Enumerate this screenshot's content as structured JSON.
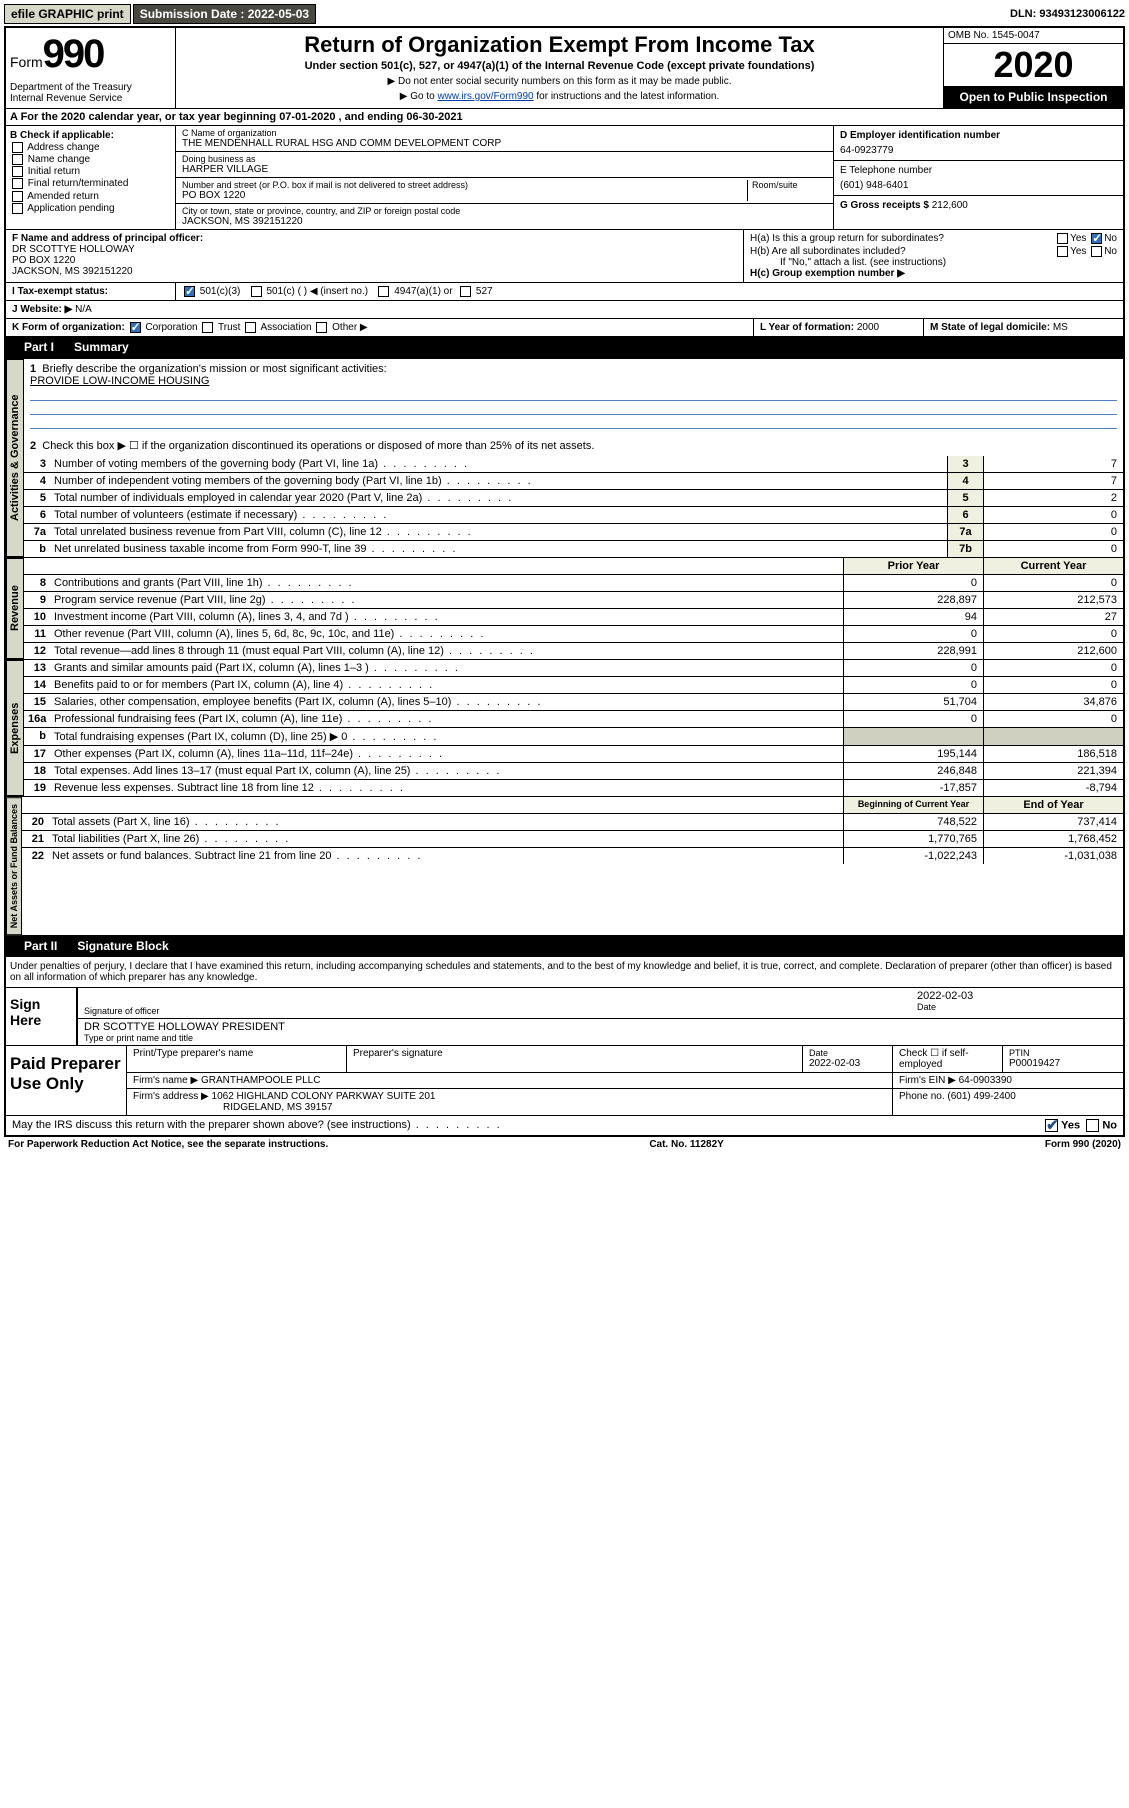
{
  "topbar": {
    "efile": "efile GRAPHIC print",
    "sub_label": "Submission Date :",
    "sub_date": "2022-05-03",
    "dln_label": "DLN:",
    "dln": "93493123006122"
  },
  "header": {
    "form": "Form",
    "form_num": "990",
    "dept1": "Department of the Treasury",
    "dept2": "Internal Revenue Service",
    "title": "Return of Organization Exempt From Income Tax",
    "sub": "Under section 501(c), 527, or 4947(a)(1) of the Internal Revenue Code (except private foundations)",
    "note1": "▶ Do not enter social security numbers on this form as it may be made public.",
    "note2_pre": "▶ Go to ",
    "note2_link": "www.irs.gov/Form990",
    "note2_post": " for instructions and the latest information.",
    "omb": "OMB No. 1545-0047",
    "year": "2020",
    "inspect": "Open to Public Inspection"
  },
  "line_a": "A For the 2020 calendar year, or tax year beginning 07-01-2020    , and ending 06-30-2021",
  "box_b": {
    "title": "B Check if applicable:",
    "items": [
      "Address change",
      "Name change",
      "Initial return",
      "Final return/terminated",
      "Amended return",
      "Application pending"
    ]
  },
  "box_c": {
    "label_name": "C Name of organization",
    "name": "THE MENDENHALL RURAL HSG AND COMM DEVELOPMENT CORP",
    "dba_label": "Doing business as",
    "dba": "HARPER VILLAGE",
    "addr_label": "Number and street (or P.O. box if mail is not delivered to street address)",
    "room_label": "Room/suite",
    "addr": "PO BOX 1220",
    "city_label": "City or town, state or province, country, and ZIP or foreign postal code",
    "city": "JACKSON, MS  392151220"
  },
  "box_d": {
    "label": "D Employer identification number",
    "value": "64-0923779"
  },
  "box_e": {
    "label": "E Telephone number",
    "value": "(601) 948-6401"
  },
  "box_g": {
    "label": "G Gross receipts $",
    "value": "212,600"
  },
  "box_f": {
    "label": "F Name and address of principal officer:",
    "l1": "DR SCOTTYE HOLLOWAY",
    "l2": "PO BOX 1220",
    "l3": "JACKSON, MS  392151220"
  },
  "box_h": {
    "ha": "H(a)  Is this a group return for subordinates?",
    "hb": "H(b)  Are all subordinates included?",
    "hb_note": "If \"No,\" attach a list. (see instructions)",
    "hc": "H(c)  Group exemption number ▶",
    "yes": "Yes",
    "no": "No"
  },
  "line_i": {
    "label": "Tax-exempt status:",
    "o1": "501(c)(3)",
    "o2": "501(c) (   ) ◀ (insert no.)",
    "o3": "4947(a)(1) or",
    "o4": "527"
  },
  "line_j": {
    "label": "J   Website: ▶",
    "value": "N/A"
  },
  "line_k": {
    "label": "K Form of organization:",
    "o1": "Corporation",
    "o2": "Trust",
    "o3": "Association",
    "o4": "Other ▶"
  },
  "line_l": {
    "label": "L Year of formation:",
    "value": "2000"
  },
  "line_m": {
    "label": "M State of legal domicile:",
    "value": "MS"
  },
  "part1": {
    "num": "Part I",
    "title": "Summary"
  },
  "s1": {
    "tab": "Activities & Governance",
    "q1": "Briefly describe the organization's mission or most significant activities:",
    "q1v": "PROVIDE LOW-INCOME HOUSING",
    "q2": "Check this box ▶ ☐  if the organization discontinued its operations or disposed of more than 25% of its net assets.",
    "rows": [
      {
        "n": "3",
        "t": "Number of voting members of the governing body (Part VI, line 1a)",
        "b": "3",
        "v": "7"
      },
      {
        "n": "4",
        "t": "Number of independent voting members of the governing body (Part VI, line 1b)",
        "b": "4",
        "v": "7"
      },
      {
        "n": "5",
        "t": "Total number of individuals employed in calendar year 2020 (Part V, line 2a)",
        "b": "5",
        "v": "2"
      },
      {
        "n": "6",
        "t": "Total number of volunteers (estimate if necessary)",
        "b": "6",
        "v": "0"
      },
      {
        "n": "7a",
        "t": "Total unrelated business revenue from Part VIII, column (C), line 12",
        "b": "7a",
        "v": "0"
      },
      {
        "n": "b",
        "t": "Net unrelated business taxable income from Form 990-T, line 39",
        "b": "7b",
        "v": "0"
      }
    ]
  },
  "s2": {
    "tab": "Revenue",
    "hdr_prior": "Prior Year",
    "hdr_curr": "Current Year",
    "rows": [
      {
        "n": "8",
        "t": "Contributions and grants (Part VIII, line 1h)",
        "p": "0",
        "c": "0"
      },
      {
        "n": "9",
        "t": "Program service revenue (Part VIII, line 2g)",
        "p": "228,897",
        "c": "212,573"
      },
      {
        "n": "10",
        "t": "Investment income (Part VIII, column (A), lines 3, 4, and 7d )",
        "p": "94",
        "c": "27"
      },
      {
        "n": "11",
        "t": "Other revenue (Part VIII, column (A), lines 5, 6d, 8c, 9c, 10c, and 11e)",
        "p": "0",
        "c": "0"
      },
      {
        "n": "12",
        "t": "Total revenue—add lines 8 through 11 (must equal Part VIII, column (A), line 12)",
        "p": "228,991",
        "c": "212,600"
      }
    ]
  },
  "s3": {
    "tab": "Expenses",
    "rows": [
      {
        "n": "13",
        "t": "Grants and similar amounts paid (Part IX, column (A), lines 1–3 )",
        "p": "0",
        "c": "0"
      },
      {
        "n": "14",
        "t": "Benefits paid to or for members (Part IX, column (A), line 4)",
        "p": "0",
        "c": "0"
      },
      {
        "n": "15",
        "t": "Salaries, other compensation, employee benefits (Part IX, column (A), lines 5–10)",
        "p": "51,704",
        "c": "34,876"
      },
      {
        "n": "16a",
        "t": "Professional fundraising fees (Part IX, column (A), line 11e)",
        "p": "0",
        "c": "0"
      },
      {
        "n": "b",
        "t": "Total fundraising expenses (Part IX, column (D), line 25) ▶ 0",
        "p": "",
        "c": ""
      },
      {
        "n": "17",
        "t": "Other expenses (Part IX, column (A), lines 11a–11d, 11f–24e)",
        "p": "195,144",
        "c": "186,518"
      },
      {
        "n": "18",
        "t": "Total expenses. Add lines 13–17 (must equal Part IX, column (A), line 25)",
        "p": "246,848",
        "c": "221,394"
      },
      {
        "n": "19",
        "t": "Revenue less expenses. Subtract line 18 from line 12",
        "p": "-17,857",
        "c": "-8,794"
      }
    ]
  },
  "s4": {
    "tab": "Net Assets or Fund Balances",
    "hdr_prior": "Beginning of Current Year",
    "hdr_curr": "End of Year",
    "rows": [
      {
        "n": "20",
        "t": "Total assets (Part X, line 16)",
        "p": "748,522",
        "c": "737,414"
      },
      {
        "n": "21",
        "t": "Total liabilities (Part X, line 26)",
        "p": "1,770,765",
        "c": "1,768,452"
      },
      {
        "n": "22",
        "t": "Net assets or fund balances. Subtract line 21 from line 20",
        "p": "-1,022,243",
        "c": "-1,031,038"
      }
    ]
  },
  "part2": {
    "num": "Part II",
    "title": "Signature Block"
  },
  "penalty": "Under penalties of perjury, I declare that I have examined this return, including accompanying schedules and statements, and to the best of my knowledge and belief, it is true, correct, and complete. Declaration of preparer (other than officer) is based on all information of which preparer has any knowledge.",
  "sign": {
    "label": "Sign Here",
    "sig_of": "Signature of officer",
    "date_l": "Date",
    "date_v": "2022-02-03",
    "name": "DR SCOTTYE HOLLOWAY PRESIDENT",
    "name_l": "Type or print name and title"
  },
  "prep": {
    "label": "Paid Preparer Use Only",
    "r1c1": "Print/Type preparer's name",
    "r1c2": "Preparer's signature",
    "r1c3l": "Date",
    "r1c3v": "2022-02-03",
    "r1c4": "Check ☐ if self-employed",
    "r1c5l": "PTIN",
    "r1c5v": "P00019427",
    "r2l": "Firm's name    ▶",
    "r2v": "GRANTHAMPOOLE PLLC",
    "r2einl": "Firm's EIN ▶",
    "r2einv": "64-0903390",
    "r3l": "Firm's address ▶",
    "r3v": "1062 HIGHLAND COLONY PARKWAY SUITE 201",
    "r3v2": "RIDGELAND, MS  39157",
    "r3phl": "Phone no.",
    "r3phv": "(601) 499-2400"
  },
  "discuss": "May the IRS discuss this return with the preparer shown above? (see instructions)",
  "footer": {
    "left": "For Paperwork Reduction Act Notice, see the separate instructions.",
    "mid": "Cat. No. 11282Y",
    "right": "Form 990 (2020)"
  }
}
